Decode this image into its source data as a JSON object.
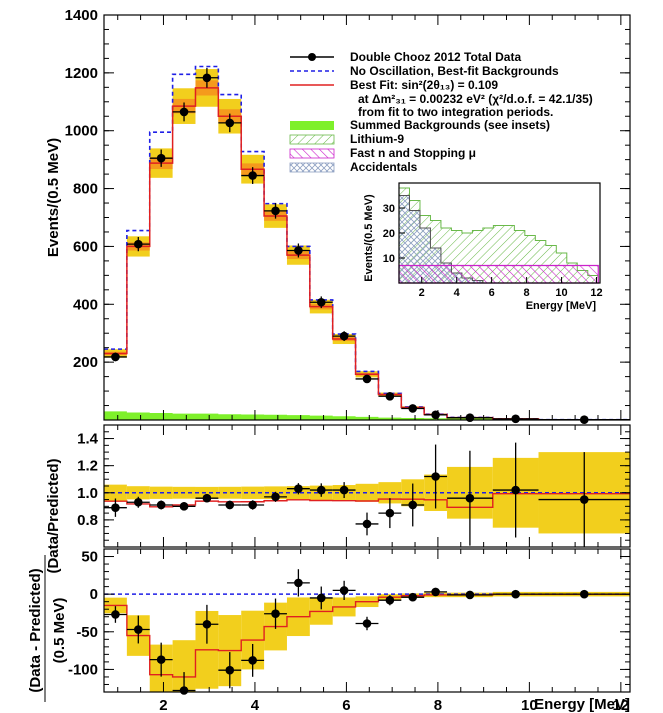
{
  "legend": {
    "data": "Double Chooz 2012 Total Data",
    "no_osc": "No Oscillation, Best-fit Backgrounds",
    "best_fit": "Best Fit: sin²(2θ₁₃) = 0.109",
    "best_fit_line2": "at Δm²₃₁ = 0.00232 eV²  (χ²/d.o.f. = 42.1/35)",
    "best_fit_line3": "from fit to two integration periods.",
    "summed_bkg": "Summed Backgrounds (see insets)",
    "lithium": "Lithium-9",
    "fastn": "Fast n and Stopping μ",
    "accidentals": "Accidentals"
  },
  "colors": {
    "data": "#000000",
    "no_osc": "#1f1fe6",
    "best_fit": "#e02020",
    "band": "#f2cf1d",
    "band_inner": "#f59a1c",
    "summed_bkg": "#7ef02a",
    "lithium": "#6ab94a",
    "fastn": "#cc22cc",
    "accidentals": "#8ea0c2"
  },
  "chart_data": [
    {
      "type": "line",
      "panel": "main",
      "xlabel": "",
      "ylabel": "Events/(0.5 MeV)",
      "xlim": [
        0.7,
        12.2
      ],
      "ylim": [
        0,
        1400
      ],
      "yticks": [
        "200",
        "400",
        "600",
        "800",
        "1000",
        "1200",
        "1400"
      ],
      "bin_edges": [
        0.7,
        1.2,
        1.7,
        2.2,
        2.7,
        3.2,
        3.7,
        4.2,
        4.7,
        5.2,
        5.7,
        6.2,
        6.7,
        7.2,
        7.7,
        8.2,
        9.2,
        10.2,
        12.2
      ],
      "series": [
        {
          "name": "Double Chooz 2012 Total Data",
          "x": [
            0.95,
            1.45,
            1.95,
            2.45,
            2.95,
            3.45,
            3.95,
            4.45,
            4.95,
            5.45,
            5.95,
            6.45,
            6.95,
            7.45,
            7.95,
            8.7,
            9.7,
            11.2
          ],
          "values": [
            218,
            608,
            905,
            1065,
            1183,
            1027,
            845,
            723,
            586,
            407,
            290,
            142,
            82,
            40,
            18,
            8,
            4,
            1
          ]
        },
        {
          "name": "No Oscillation, Best-fit Backgrounds",
          "values": [
            245,
            655,
            995,
            1195,
            1222,
            1125,
            928,
            748,
            600,
            415,
            297,
            168,
            92,
            45,
            20,
            9,
            4,
            1
          ]
        },
        {
          "name": "Best Fit: sin²(2θ₁₃) = 0.109",
          "values": [
            230,
            600,
            888,
            1085,
            1148,
            1050,
            867,
            705,
            570,
            392,
            280,
            158,
            88,
            43,
            19,
            8,
            4,
            1
          ]
        },
        {
          "name": "Summed Backgrounds (see insets)",
          "values": [
            30,
            26,
            24,
            22,
            22,
            20,
            19,
            18,
            17,
            15,
            13,
            11,
            8,
            7,
            6,
            5,
            4,
            2
          ]
        }
      ]
    },
    {
      "type": "scatter",
      "panel": "ratio",
      "xlabel": "",
      "ylabel": "(Data/Predicted)",
      "xlim": [
        0.7,
        12.2
      ],
      "ylim": [
        0.6,
        1.5
      ],
      "yticks": [
        "0.8",
        "1.0",
        "1.2",
        "1.4"
      ],
      "series": [
        {
          "name": "Data/Predicted",
          "x": [
            0.95,
            1.45,
            1.95,
            2.45,
            2.95,
            3.45,
            3.95,
            4.45,
            4.95,
            5.45,
            5.95,
            6.45,
            6.95,
            7.45,
            7.95,
            8.7,
            9.7,
            11.2
          ],
          "values": [
            0.89,
            0.93,
            0.91,
            0.9,
            0.96,
            0.91,
            0.91,
            0.97,
            1.03,
            1.02,
            1.02,
            0.77,
            0.85,
            0.91,
            1.12,
            0.96,
            1.02,
            0.95
          ]
        }
      ]
    },
    {
      "type": "scatter",
      "panel": "residual",
      "xlabel": "Energy [MeV]",
      "ylabel": "(Data - Predicted)",
      "ylabel2": "(0.5 MeV)",
      "xlim": [
        0.7,
        12.2
      ],
      "ylim": [
        -130,
        60
      ],
      "yticks": [
        "-100",
        "-50",
        "0",
        "50"
      ],
      "xticks": [
        "2",
        "4",
        "6",
        "8",
        "10",
        "12"
      ],
      "series": [
        {
          "name": "Data - Predicted",
          "x": [
            0.95,
            1.45,
            1.95,
            2.45,
            2.95,
            3.45,
            3.95,
            4.45,
            4.95,
            5.45,
            5.95,
            6.45,
            6.95,
            7.45,
            7.95,
            8.7,
            9.7,
            11.2
          ],
          "values": [
            -27,
            -47,
            -87,
            -128,
            -40,
            -101,
            -88,
            -26,
            15,
            -5,
            5,
            -39,
            -8,
            -4,
            3,
            -1,
            0,
            0
          ]
        }
      ]
    },
    {
      "type": "area",
      "panel": "inset",
      "xlabel": "Energy [MeV]",
      "ylabel": "Events/(0.5 MeV)",
      "xlim": [
        0.7,
        12.2
      ],
      "ylim": [
        0,
        40
      ],
      "yticks": [
        "10",
        "20",
        "30"
      ],
      "xticks": [
        "2",
        "4",
        "6",
        "8",
        "10",
        "12"
      ],
      "series": [
        {
          "name": "Lithium-9",
          "values": [
            38,
            33,
            27,
            25,
            22,
            21,
            20,
            21,
            22,
            23,
            23,
            21,
            19,
            17,
            15,
            12,
            8,
            5,
            3
          ]
        },
        {
          "name": "Fast n and Stopping μ",
          "values": [
            7,
            7,
            7,
            7,
            7,
            7,
            7,
            7,
            7,
            7,
            7,
            7,
            7,
            7,
            7,
            7,
            7,
            7,
            7
          ]
        },
        {
          "name": "Accidentals",
          "values": [
            35,
            29,
            22,
            14,
            8,
            4,
            2,
            1,
            0,
            0,
            0,
            0,
            0,
            0,
            0,
            0,
            0,
            0,
            0
          ]
        }
      ]
    }
  ]
}
